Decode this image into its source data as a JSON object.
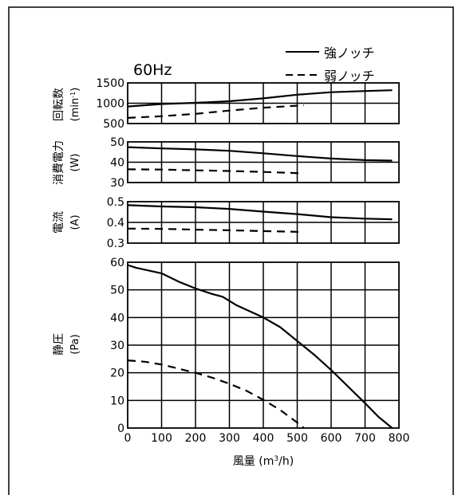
{
  "frequency_label": "60Hz",
  "legend": {
    "strong": "強ノッチ",
    "weak": "弱ノッチ"
  },
  "x_axis": {
    "label_prefix": "風量 (m",
    "label_sup": "3",
    "label_suffix": "/h)"
  },
  "panels": {
    "speed": {
      "label_line1": "回転数",
      "label_line2_prefix": "(min",
      "label_line2_sup": "-1",
      "label_line2_suffix": ")"
    },
    "power": {
      "label_line1": "消費電力",
      "label_line2": "(W)"
    },
    "current": {
      "label_line1": "電流",
      "label_line2": "(A)"
    },
    "pressure": {
      "label_line1": "静圧",
      "label_line2": "(Pa)"
    }
  },
  "chart_data": [
    {
      "type": "line",
      "id": "speed",
      "ylim": [
        500,
        1500
      ],
      "yticks": [
        "1500",
        "1000",
        "500"
      ],
      "ytick_values": [
        1500,
        1000,
        500
      ],
      "xlim": [
        0,
        800
      ],
      "series": [
        {
          "name": "強ノッチ",
          "style": "solid",
          "x": [
            0,
            100,
            200,
            300,
            400,
            500,
            600,
            700,
            780
          ],
          "y": [
            920,
            980,
            1010,
            1050,
            1120,
            1210,
            1270,
            1300,
            1320
          ]
        },
        {
          "name": "弱ノッチ",
          "style": "dashed",
          "x": [
            0,
            100,
            200,
            300,
            400,
            520
          ],
          "y": [
            640,
            680,
            740,
            820,
            890,
            950
          ]
        }
      ]
    },
    {
      "type": "line",
      "id": "power",
      "ylim": [
        30,
        50
      ],
      "yticks": [
        "50",
        "40",
        "30"
      ],
      "ytick_values": [
        50,
        40,
        30
      ],
      "xlim": [
        0,
        800
      ],
      "series": [
        {
          "name": "強ノッチ",
          "style": "solid",
          "x": [
            0,
            100,
            200,
            300,
            400,
            500,
            600,
            700,
            780
          ],
          "y": [
            47.4,
            46.8,
            46.3,
            45.6,
            44.4,
            43.0,
            41.8,
            41.0,
            40.8
          ]
        },
        {
          "name": "弱ノッチ",
          "style": "dashed",
          "x": [
            0,
            100,
            200,
            300,
            400,
            520
          ],
          "y": [
            36.5,
            36.4,
            36.0,
            35.7,
            35.2,
            34.5
          ]
        }
      ]
    },
    {
      "type": "line",
      "id": "current",
      "ylim": [
        0.3,
        0.5
      ],
      "yticks": [
        "0.5",
        "0.4",
        "0.3"
      ],
      "ytick_values": [
        0.5,
        0.4,
        0.3
      ],
      "xlim": [
        0,
        800
      ],
      "series": [
        {
          "name": "強ノッチ",
          "style": "solid",
          "x": [
            0,
            100,
            200,
            300,
            400,
            500,
            600,
            700,
            780
          ],
          "y": [
            0.483,
            0.477,
            0.473,
            0.465,
            0.452,
            0.44,
            0.425,
            0.418,
            0.415
          ]
        },
        {
          "name": "弱ノッチ",
          "style": "dashed",
          "x": [
            0,
            100,
            200,
            300,
            400,
            520
          ],
          "y": [
            0.37,
            0.369,
            0.365,
            0.362,
            0.358,
            0.354
          ]
        }
      ]
    },
    {
      "type": "line",
      "id": "pressure",
      "ylim": [
        0,
        60
      ],
      "yticks": [
        "60",
        "50",
        "40",
        "30",
        "20",
        "10",
        "0"
      ],
      "ytick_values": [
        60,
        50,
        40,
        30,
        20,
        10,
        0
      ],
      "xlim": [
        0,
        800
      ],
      "xticks": [
        "0",
        "100",
        "200",
        "300",
        "400",
        "500",
        "600",
        "700",
        "800"
      ],
      "xtick_values": [
        0,
        100,
        200,
        300,
        400,
        500,
        600,
        700,
        800
      ],
      "series": [
        {
          "name": "強ノッチ",
          "style": "solid",
          "x": [
            0,
            25,
            100,
            150,
            200,
            250,
            280,
            320,
            400,
            450,
            500,
            550,
            600,
            650,
            700,
            740,
            780
          ],
          "y": [
            59,
            58,
            56,
            53,
            50.5,
            48.5,
            47.5,
            44.5,
            40,
            36.5,
            31.5,
            26.5,
            21,
            15,
            9,
            4,
            0
          ]
        },
        {
          "name": "弱ノッチ",
          "style": "dashed",
          "x": [
            0,
            50,
            100,
            150,
            200,
            250,
            300,
            350,
            400,
            450,
            500,
            520
          ],
          "y": [
            24.5,
            24,
            23,
            21.5,
            20,
            18.2,
            16,
            13.5,
            10.2,
            6.5,
            2,
            0
          ]
        }
      ]
    }
  ]
}
